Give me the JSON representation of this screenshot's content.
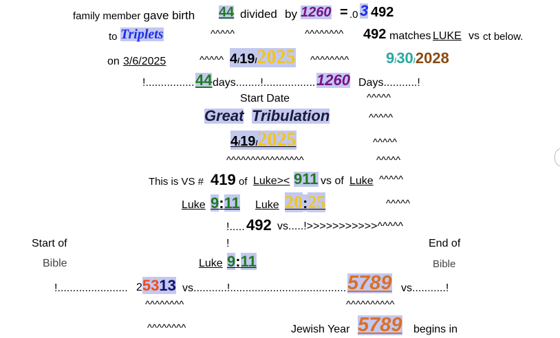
{
  "line1": {
    "family_member": "family member",
    "gave_birth": "gave birth",
    "num44": "44",
    "divided": "divided",
    "by": "by",
    "num1260": "1260",
    "eq": "=",
    "dot0": ".0",
    "three": "3",
    "num492": "492"
  },
  "line2": {
    "to": "to",
    "triplets": "Triplets",
    "carets_a": "^^^^^",
    "carets_b": "^^^^^^^^",
    "num492": "492",
    "matches": "matches",
    "luke": "LUKE",
    "vs": "vs",
    "ct_below": "ct below."
  },
  "line3": {
    "on": "on",
    "date": "3/6/2025",
    "carets_a": "^^^^^",
    "d4": "4",
    "slash1": "/",
    "d19": "19",
    "slash2": "/",
    "y2025": "2025",
    "carets_b": "^^^^^^^^",
    "m9": "9",
    "slash3": "/",
    "d30": "30",
    "slash4": "/",
    "y2028": "2028"
  },
  "line4": {
    "bang_dots": "!................",
    "num44": "44",
    "days_dots": "days........!.................",
    "num1260": "1260",
    "days_end": "Days...........!"
  },
  "line5": {
    "start_date": "Start Date",
    "carets": "^^^^^"
  },
  "line6": {
    "great": "Great",
    "tribulation": "Tribulation",
    "carets": "^^^^^"
  },
  "line7": {
    "d4": "4",
    "slash1": "/",
    "d19": "19",
    "slash2": "/",
    "y2025": "2025",
    "carets": "^^^^^"
  },
  "line8": {
    "carets_long": "^^^^^^^^^^^^^^^^",
    "carets_short": "^^^^^"
  },
  "line9": {
    "this_is": "This is VS  #",
    "num419": "419",
    "of": "of",
    "luke": "Luke><",
    "num911": "911",
    "vs_of": "vs of",
    "luke2": "Luke",
    "carets": "^^^^^"
  },
  "line10": {
    "luke_a": "Luke",
    "nine": "9",
    "colon_a": ":",
    "eleven": "11",
    "luke_b": "Luke",
    "twenty": "20",
    "colon_b": ":",
    "twentyfive": "25",
    "carets": "^^^^^"
  },
  "line11": {
    "bang_dots": "!.....",
    "num492": "492",
    "rest": "vs.....!>>>>>>>>>>>^^^^^"
  },
  "line12": {
    "start_of": "Start of",
    "bang": "!",
    "end_of": "End of"
  },
  "line13": {
    "bible_left": "Bible",
    "luke": "Luke",
    "nine": "9",
    "colon": ":",
    "eleven": "11",
    "bible_right": "Bible"
  },
  "line14": {
    "bang_dots": "!.......................",
    "two": "2",
    "fifty3": "53",
    "thirteen": "13",
    "vs_dots": "vs...........!......................................",
    "num5789": "5789",
    "vs_end": "vs...........!"
  },
  "line15": {
    "carets_a": "^^^^^^^^",
    "carets_b": "^^^^^^^^^^"
  },
  "line16": {
    "carets": "^^^^^^^^",
    "jewish_year": "Jewish Year",
    "num5789": "5789",
    "begins_in": "begins in"
  }
}
